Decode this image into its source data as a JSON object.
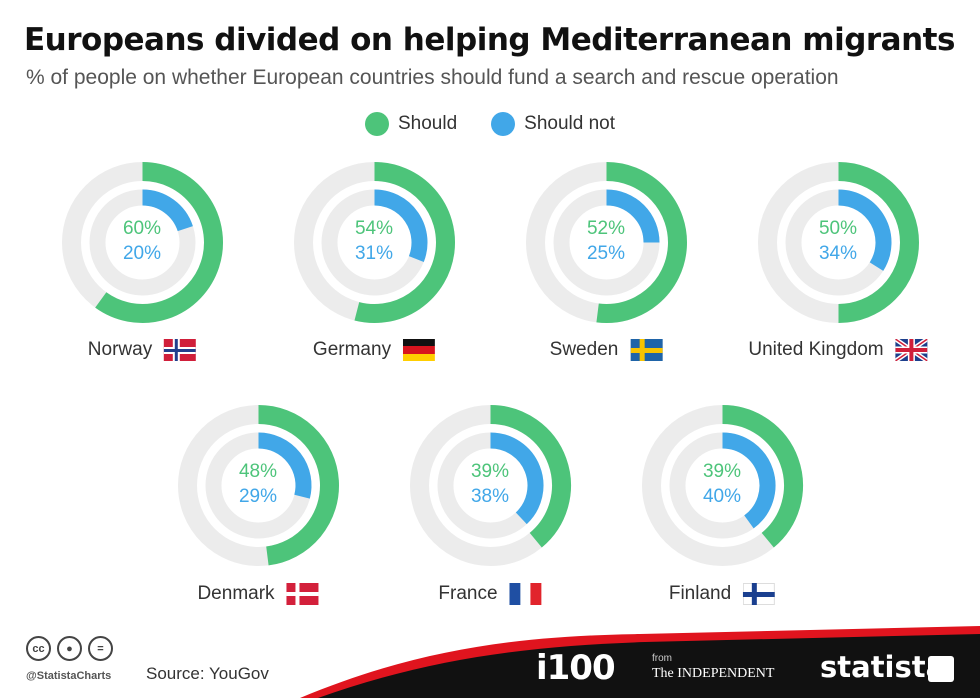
{
  "header": {
    "title": "Europeans divided on helping Mediterranean migrants",
    "subtitle": "% of people on whether European countries should fund a search and rescue operation"
  },
  "legend": {
    "should": "Should",
    "should_not": "Should not"
  },
  "colors": {
    "should": "#4dc47a",
    "should_not": "#41a7e8",
    "track": "#ececec",
    "footer": "#111111",
    "accent_red": "#e0141e"
  },
  "chart_data": {
    "type": "donut",
    "series": [
      {
        "name": "Should",
        "color": "#4dc47a"
      },
      {
        "name": "Should not",
        "color": "#41a7e8"
      }
    ],
    "countries": [
      {
        "name": "Norway",
        "should": 60,
        "should_not": 20,
        "should_label": "60%",
        "should_not_label": "20%",
        "flag": "norway-flag"
      },
      {
        "name": "Germany",
        "should": 54,
        "should_not": 31,
        "should_label": "54%",
        "should_not_label": "31%",
        "flag": "germany-flag"
      },
      {
        "name": "Sweden",
        "should": 52,
        "should_not": 25,
        "should_label": "52%",
        "should_not_label": "25%",
        "flag": "sweden-flag"
      },
      {
        "name": "United Kingdom",
        "should": 50,
        "should_not": 34,
        "should_label": "50%",
        "should_not_label": "34%",
        "flag": "uk-flag"
      },
      {
        "name": "Denmark",
        "should": 48,
        "should_not": 29,
        "should_label": "48%",
        "should_not_label": "29%",
        "flag": "denmark-flag"
      },
      {
        "name": "France",
        "should": 39,
        "should_not": 38,
        "should_label": "39%",
        "should_not_label": "38%",
        "flag": "france-flag"
      },
      {
        "name": "Finland",
        "should": 39,
        "should_not": 40,
        "should_label": "39%",
        "should_not_label": "40%",
        "flag": "finland-flag"
      }
    ]
  },
  "footer": {
    "handle": "@StatistaCharts",
    "source": "Source: YouGov",
    "i100": "i100",
    "from": "from",
    "independent": "The INDEPENDENT",
    "statista": "statista",
    "icons": [
      "creative-commons-icon",
      "attribution-icon",
      "no-derivatives-icon"
    ]
  }
}
